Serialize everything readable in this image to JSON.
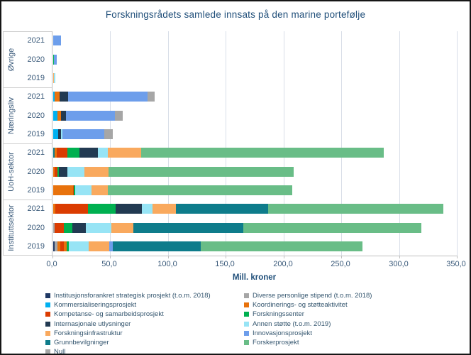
{
  "chart_data": {
    "type": "bar",
    "orientation": "horizontal",
    "stacked": true,
    "title": "Forskningsrådets samlede innsats på den marine portefølje",
    "xlabel": "Mill. kroner",
    "xlim": [
      0,
      350
    ],
    "x_tick_values": [
      0,
      50,
      100,
      150,
      200,
      250,
      300,
      350
    ],
    "x_tick_labels": [
      "0,0",
      "50,0",
      "100,0",
      "150,0",
      "200,0",
      "250,0",
      "300,0",
      "350,0"
    ],
    "grid": true,
    "series_colors": {
      "Institusjonsforankret strategisk prosjekt (t.o.m. 2018)": "#1F3864",
      "Kommersialiseringsprosjekt": "#00B0F0",
      "Kompetanse- og samarbeidsprosjekt": "#DB3C01",
      "Internasjonale utlysninger": "#223A52",
      "Forskningsinfrastruktur": "#F9A95E",
      "Grunnbevilgninger": "#0E7C8B",
      "Null": "#A6A6A6",
      "Diverse personlige stipend (t.o.m. 2018)": "#A6A6A6",
      "Koordinerings- og støtteaktivitet": "#E8720C",
      "Forskningssenter": "#00B050",
      "Annen støtte (t.o.m. 2019)": "#97E4F5",
      "Innovasjonsprosjekt": "#6D9EEB",
      "Forskerprosjekt": "#69BD87"
    },
    "groups": [
      {
        "name": "Øvrige",
        "bars": [
          {
            "year": "2021",
            "total": 7,
            "segments": [
              {
                "series": "Innovasjonsprosjekt",
                "value": 7
              }
            ]
          },
          {
            "year": "2020",
            "total": 3,
            "segments": [
              {
                "series": "Forskningssenter",
                "value": 0.5
              },
              {
                "series": "Innovasjonsprosjekt",
                "value": 2.5
              }
            ]
          },
          {
            "year": "2019",
            "total": 1.5,
            "segments": [
              {
                "series": "Forskningsinfrastruktur",
                "value": 0.5
              },
              {
                "series": "Annen støtte (t.o.m. 2019)",
                "value": 1
              }
            ]
          }
        ]
      },
      {
        "name": "Næringsliv",
        "bars": [
          {
            "year": "2021",
            "total": 88,
            "segments": [
              {
                "series": "Kommersialiseringsprosjekt",
                "value": 1.5
              },
              {
                "series": "Koordinerings- og støtteaktivitet",
                "value": 4
              },
              {
                "series": "Internasjonale utlysninger",
                "value": 7.5
              },
              {
                "series": "Innovasjonsprosjekt",
                "value": 68.5
              },
              {
                "series": "Null",
                "value": 6.5
              }
            ]
          },
          {
            "year": "2020",
            "total": 60.5,
            "segments": [
              {
                "series": "Kommersialiseringsprosjekt",
                "value": 3.5
              },
              {
                "series": "Koordinerings- og støtteaktivitet",
                "value": 3.5
              },
              {
                "series": "Internasjonale utlysninger",
                "value": 4
              },
              {
                "series": "Innovasjonsprosjekt",
                "value": 42.5
              },
              {
                "series": "Null",
                "value": 7
              }
            ]
          },
          {
            "year": "2019",
            "total": 51.5,
            "segments": [
              {
                "series": "Kommersialiseringsprosjekt",
                "value": 4.5
              },
              {
                "series": "Internasjonale utlysninger",
                "value": 2
              },
              {
                "series": "Annen støtte (t.o.m. 2019)",
                "value": 1.5
              },
              {
                "series": "Innovasjonsprosjekt",
                "value": 36
              },
              {
                "series": "Null",
                "value": 7.5
              }
            ]
          }
        ]
      },
      {
        "name": "UoH-sektor",
        "bars": [
          {
            "year": "2021",
            "total": 286,
            "segments": [
              {
                "series": "Grunnbevilgninger",
                "value": 1
              },
              {
                "series": "Koordinerings- og støtteaktivitet",
                "value": 2
              },
              {
                "series": "Kompetanse- og samarbeidsprosjekt",
                "value": 9
              },
              {
                "series": "Forskningssenter",
                "value": 11
              },
              {
                "series": "Internasjonale utlysninger",
                "value": 16
              },
              {
                "series": "Annen støtte (t.o.m. 2019)",
                "value": 8
              },
              {
                "series": "Forskningsinfrastruktur",
                "value": 29
              },
              {
                "series": "Forskerprosjekt",
                "value": 210
              }
            ]
          },
          {
            "year": "2020",
            "total": 208,
            "segments": [
              {
                "series": "Koordinerings- og støtteaktivitet",
                "value": 1
              },
              {
                "series": "Kompetanse- og samarbeidsprosjekt",
                "value": 2.5
              },
              {
                "series": "Forskningssenter",
                "value": 1.5
              },
              {
                "series": "Internasjonale utlysninger",
                "value": 7
              },
              {
                "series": "Annen støtte (t.o.m. 2019)",
                "value": 15
              },
              {
                "series": "Forskningsinfrastruktur",
                "value": 21
              },
              {
                "series": "Forskerprosjekt",
                "value": 160
              }
            ]
          },
          {
            "year": "2019",
            "total": 207,
            "segments": [
              {
                "series": "Koordinerings- og støtteaktivitet",
                "value": 17
              },
              {
                "series": "Kompetanse- og samarbeidsprosjekt",
                "value": 1
              },
              {
                "series": "Forskningssenter",
                "value": 1
              },
              {
                "series": "Annen støtte (t.o.m. 2019)",
                "value": 14
              },
              {
                "series": "Forskningsinfrastruktur",
                "value": 14
              },
              {
                "series": "Forskerprosjekt",
                "value": 160
              }
            ]
          }
        ]
      },
      {
        "name": "Instituttsektor",
        "bars": [
          {
            "year": "2021",
            "total": 338,
            "segments": [
              {
                "series": "Koordinerings- og støtteaktivitet",
                "value": 2
              },
              {
                "series": "Kompetanse- og samarbeidsprosjekt",
                "value": 28
              },
              {
                "series": "Forskningssenter",
                "value": 24
              },
              {
                "series": "Internasjonale utlysninger",
                "value": 23
              },
              {
                "series": "Annen støtte (t.o.m. 2019)",
                "value": 9
              },
              {
                "series": "Forskningsinfrastruktur",
                "value": 20
              },
              {
                "series": "Grunnbevilgninger",
                "value": 80
              },
              {
                "series": "Forskerprosjekt",
                "value": 152
              }
            ]
          },
          {
            "year": "2020",
            "total": 318.5,
            "segments": [
              {
                "series": "Diverse personlige stipend (t.o.m. 2018)",
                "value": 1.5
              },
              {
                "series": "Kompetanse- og samarbeidsprosjekt",
                "value": 8
              },
              {
                "series": "Forskningssenter",
                "value": 7
              },
              {
                "series": "Internasjonale utlysninger",
                "value": 12
              },
              {
                "series": "Annen støtte (t.o.m. 2019)",
                "value": 22
              },
              {
                "series": "Forskningsinfrastruktur",
                "value": 19
              },
              {
                "series": "Grunnbevilgninger",
                "value": 95
              },
              {
                "series": "Forskerprosjekt",
                "value": 154
              }
            ]
          },
          {
            "year": "2019",
            "total": 267.5,
            "segments": [
              {
                "series": "Institusjonsforankret strategisk prosjekt (t.o.m. 2018)",
                "value": 1
              },
              {
                "series": "Diverse personlige stipend (t.o.m. 2018)",
                "value": 2.5
              },
              {
                "series": "Koordinerings- og støtteaktivitet",
                "value": 2.5
              },
              {
                "series": "Kompetanse- og samarbeidsprosjekt",
                "value": 3
              },
              {
                "series": "Koordinerings- og støtteaktivitet",
                "value": 2.5
              },
              {
                "series": "Forskningssenter",
                "value": 2
              },
              {
                "series": "Annen støtte (t.o.m. 2019)",
                "value": 17
              },
              {
                "series": "Forskningsinfrastruktur",
                "value": 18
              },
              {
                "series": "Innovasjonsprosjekt",
                "value": 3
              },
              {
                "series": "Grunnbevilgninger",
                "value": 76
              },
              {
                "series": "Forskerprosjekt",
                "value": 140
              }
            ]
          }
        ]
      }
    ],
    "legend_position": "bottom",
    "legend_columns": [
      {
        "items": [
          "Institusjonsforankret strategisk prosjekt (t.o.m. 2018)",
          "Kommersialiseringsprosjekt",
          "Kompetanse- og samarbeidsprosjekt",
          "Internasjonale utlysninger",
          "Forskningsinfrastruktur",
          "Grunnbevilgninger",
          "Null"
        ]
      },
      {
        "items": [
          "Diverse personlige stipend (t.o.m. 2018)",
          "Koordinerings- og støtteaktivitet",
          "Forskningssenter",
          "Annen støtte (t.o.m. 2019)",
          "Innovasjonsprosjekt",
          "Forskerprosjekt"
        ]
      }
    ]
  }
}
